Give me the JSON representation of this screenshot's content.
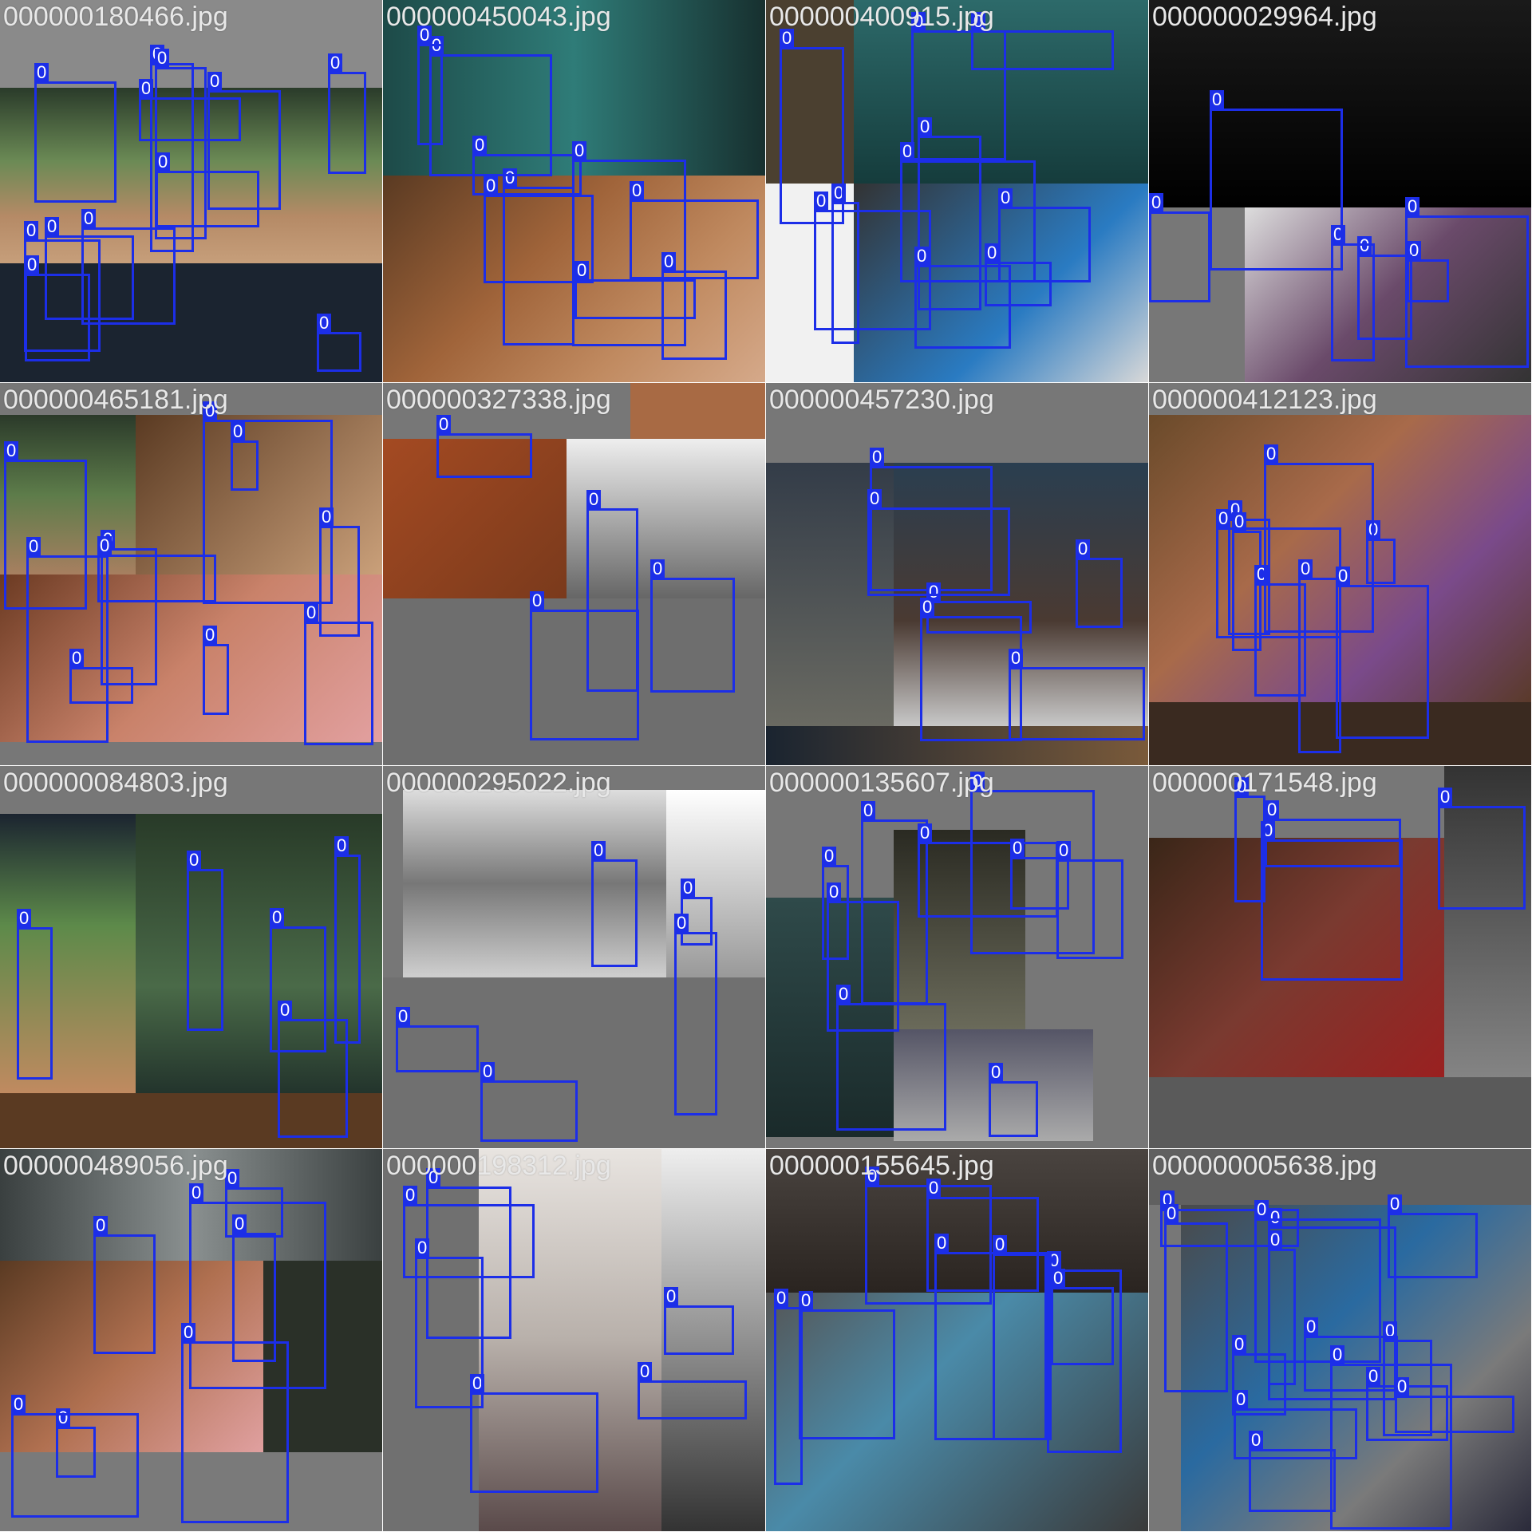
{
  "box_color": "#1c2ee8",
  "tiles": [
    {
      "title": "000000180466.jpg",
      "label": "0",
      "boxes": 12
    },
    {
      "title": "000000450043.jpg",
      "label": "0",
      "boxes": 9
    },
    {
      "title": "000000400915.jpg",
      "label": "0",
      "boxes": 10
    },
    {
      "title": "000000029964.jpg",
      "label": "0",
      "boxes": 6
    },
    {
      "title": "000000465181.jpg",
      "label": "0",
      "boxes": 10
    },
    {
      "title": "000000327338.jpg",
      "label": "0",
      "boxes": 4
    },
    {
      "title": "000000457230.jpg",
      "label": "0",
      "boxes": 6
    },
    {
      "title": "000000412123.jpg",
      "label": "0",
      "boxes": 8
    },
    {
      "title": "000000084803.jpg",
      "label": "0",
      "boxes": 5
    },
    {
      "title": "000000295022.jpg",
      "label": "0",
      "boxes": 5
    },
    {
      "title": "000000135607.jpg",
      "label": "0",
      "boxes": 9
    },
    {
      "title": "000000171548.jpg",
      "label": "0",
      "boxes": 4
    },
    {
      "title": "000000489056.jpg",
      "label": "0",
      "boxes": 7
    },
    {
      "title": "000000198312.jpg",
      "label": "0",
      "boxes": 6
    },
    {
      "title": "000000155645.jpg",
      "label": "0",
      "boxes": 8
    },
    {
      "title": "000000005638.jpg",
      "label": "0",
      "boxes": 14
    }
  ]
}
